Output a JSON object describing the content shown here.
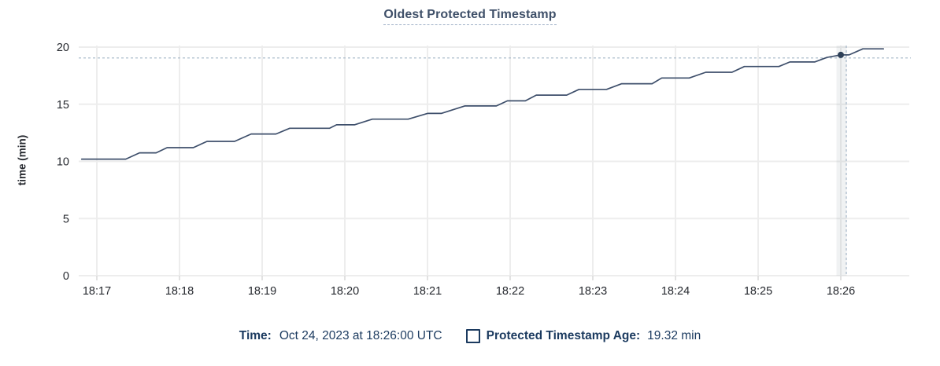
{
  "chart_data": {
    "type": "line",
    "title": "Oldest Protected Timestamp",
    "xlabel": "",
    "ylabel": "time (min)",
    "ylim": [
      0,
      20
    ],
    "y_ticks": [
      0,
      5,
      10,
      15,
      20
    ],
    "x_ticks": [
      "18:17",
      "18:18",
      "18:19",
      "18:20",
      "18:21",
      "18:22",
      "18:23",
      "18:24",
      "18:25",
      "18:26"
    ],
    "grid": true,
    "legend_position": "bottom",
    "series": [
      {
        "name": "Protected Timestamp Age",
        "unit": "min",
        "color": "#3e4f6b",
        "points": [
          [
            "18:16:49",
            10.2
          ],
          [
            "18:17:21",
            10.2
          ],
          [
            "18:17:31",
            10.75
          ],
          [
            "18:17:43",
            10.75
          ],
          [
            "18:17:51",
            11.2
          ],
          [
            "18:18:10",
            11.2
          ],
          [
            "18:18:20",
            11.75
          ],
          [
            "18:18:40",
            11.75
          ],
          [
            "18:18:52",
            12.4
          ],
          [
            "18:19:10",
            12.4
          ],
          [
            "18:19:20",
            12.9
          ],
          [
            "18:19:49",
            12.9
          ],
          [
            "18:19:54",
            13.2
          ],
          [
            "18:20:07",
            13.2
          ],
          [
            "18:20:20",
            13.7
          ],
          [
            "18:20:46",
            13.7
          ],
          [
            "18:21:00",
            14.2
          ],
          [
            "18:21:10",
            14.2
          ],
          [
            "18:21:27",
            14.85
          ],
          [
            "18:21:50",
            14.85
          ],
          [
            "18:21:58",
            15.3
          ],
          [
            "18:22:11",
            15.3
          ],
          [
            "18:22:19",
            15.8
          ],
          [
            "18:22:41",
            15.8
          ],
          [
            "18:22:50",
            16.3
          ],
          [
            "18:23:10",
            16.3
          ],
          [
            "18:23:21",
            16.8
          ],
          [
            "18:23:43",
            16.8
          ],
          [
            "18:23:50",
            17.3
          ],
          [
            "18:24:10",
            17.3
          ],
          [
            "18:24:22",
            17.8
          ],
          [
            "18:24:41",
            17.8
          ],
          [
            "18:24:50",
            18.3
          ],
          [
            "18:25:15",
            18.3
          ],
          [
            "18:25:23",
            18.7
          ],
          [
            "18:25:41",
            18.7
          ],
          [
            "18:25:50",
            19.1
          ],
          [
            "18:26:00",
            19.32
          ],
          [
            "18:26:06",
            19.32
          ],
          [
            "18:26:16",
            19.85
          ],
          [
            "18:26:31",
            19.85
          ]
        ]
      }
    ],
    "highlight_point": {
      "time": "18:26:00",
      "value": 19.32
    },
    "crosshair": {
      "time": "18:26:04",
      "value": 19.05
    }
  },
  "legend": {
    "time_label": "Time:",
    "time_value": "Oct 24, 2023 at 18:26:00 UTC",
    "series_checkbox_icon": "checkbox-outline",
    "series_label": "Protected Timestamp Age:",
    "series_value": "19.32 min"
  },
  "colors": {
    "line": "#3e4f6b",
    "title_text": "#3f5069",
    "legend_text": "#1b3a5f",
    "axis_text": "#25282e",
    "gridline": "#ededed",
    "tick_mark": "#d8d8d8",
    "crosshair": "#a3b5c6",
    "highlight_dot": "#2e4058",
    "hover_band": "rgba(130,145,160,0.12)",
    "background": "#ffffff"
  }
}
